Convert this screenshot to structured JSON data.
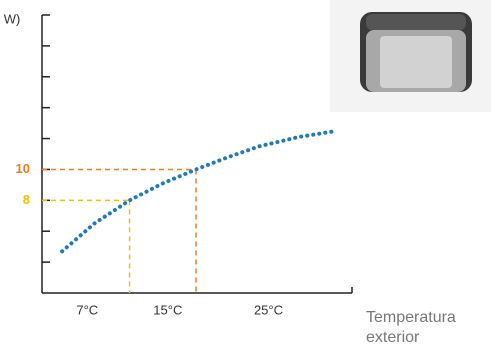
{
  "chart_data": {
    "type": "line",
    "y_label": "W)",
    "x_label": [
      "Temperatura",
      "exterior"
    ],
    "xlim": [
      2.5,
      33.3
    ],
    "ylim": [
      2,
      20
    ],
    "xticks": [
      {
        "value": 7,
        "label": "7°C"
      },
      {
        "value": 15,
        "label": "15°C"
      },
      {
        "value": 25,
        "label": "25°C"
      }
    ],
    "yticks": [
      8,
      10
    ],
    "minor_yticks": [
      4,
      6,
      12,
      14,
      16,
      18
    ],
    "guides": [
      {
        "x": 11.2,
        "color": "#f2c200"
      },
      {
        "x": 17.8,
        "color": "#ee7d22"
      }
    ],
    "series": [
      {
        "color": "#1f78c1",
        "x": [
          4.5,
          7.7,
          11.2,
          14.5,
          17.8,
          21,
          24.1,
          28,
          31.8
        ],
        "values": [
          4.7,
          6.5,
          8,
          9.1,
          10,
          10.8,
          11.5,
          12.1,
          12.5
        ]
      }
    ]
  }
}
